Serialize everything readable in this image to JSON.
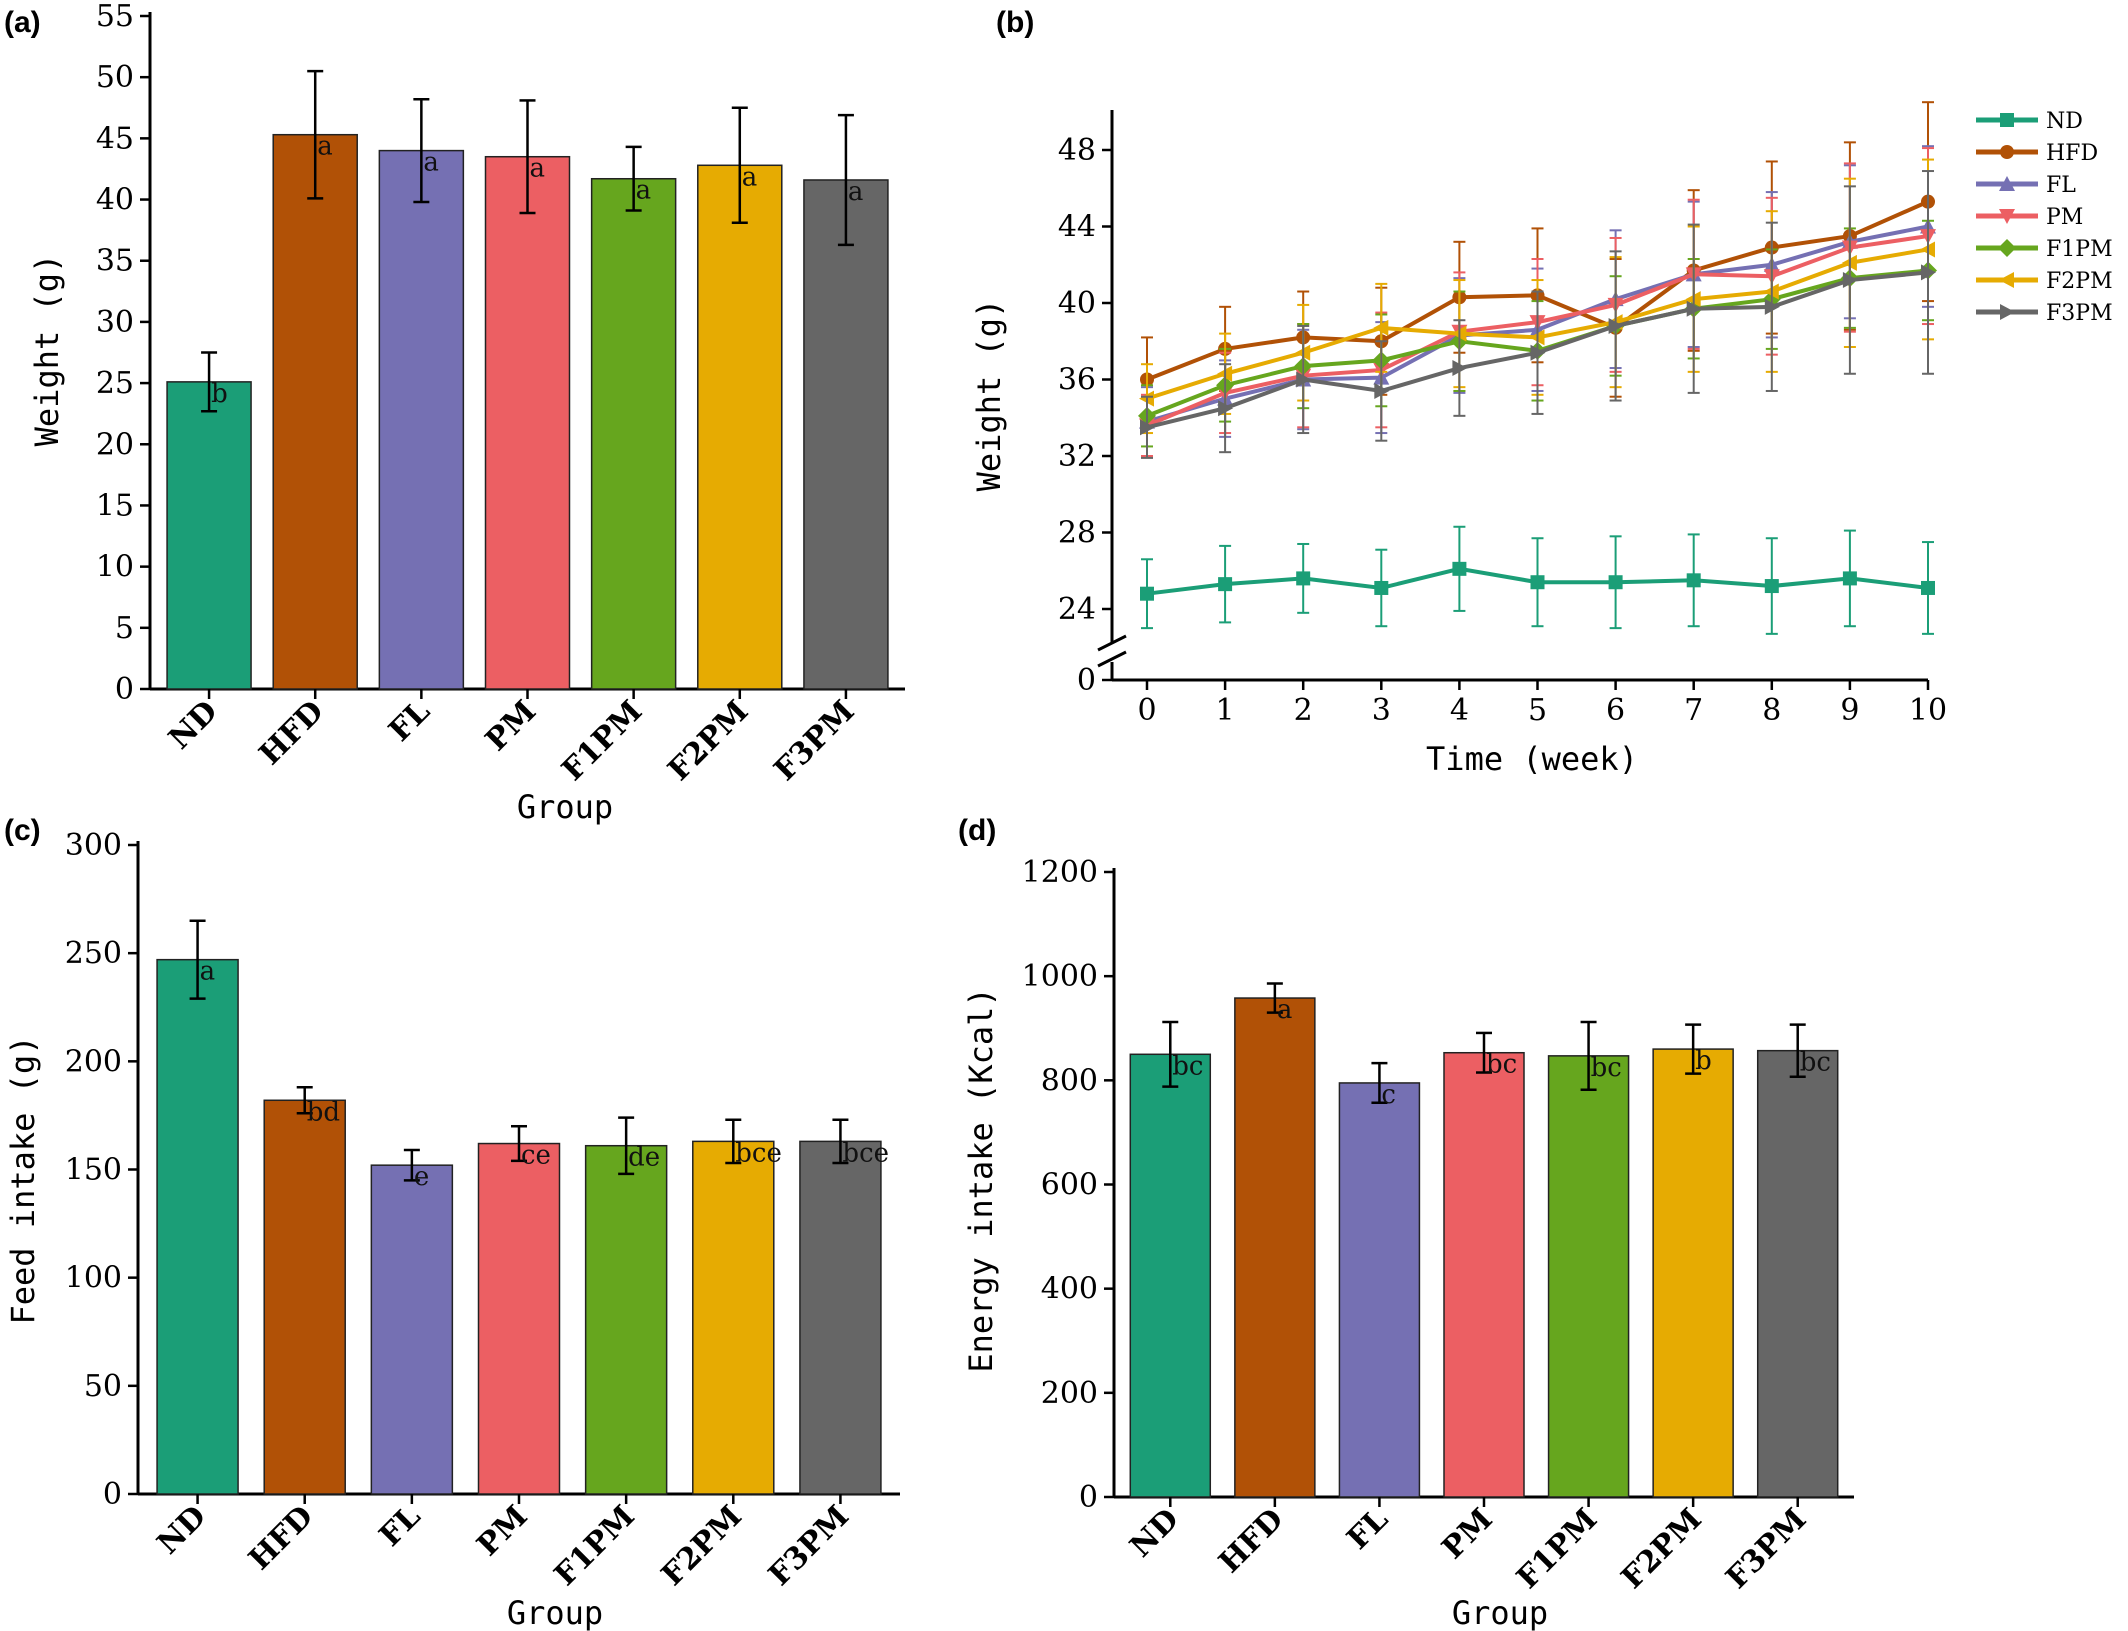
{
  "chart_data": [
    {
      "panel": "(a)",
      "type": "bar",
      "categories": [
        "ND",
        "HFD",
        "FL",
        "PM",
        "F1PM",
        "F2PM",
        "F3PM"
      ],
      "values": [
        25.1,
        45.3,
        44.0,
        43.5,
        41.7,
        42.8,
        41.6
      ],
      "errors": [
        2.4,
        5.2,
        4.2,
        4.6,
        2.6,
        4.7,
        5.3
      ],
      "labels": [
        "b",
        "a",
        "a",
        "a",
        "a",
        "a",
        "a"
      ],
      "xlabel": "Group",
      "ylabel": "Weight (g)",
      "ylim": [
        0,
        55
      ],
      "yticks": [
        0,
        5,
        10,
        15,
        20,
        25,
        30,
        35,
        40,
        45,
        50,
        55
      ]
    },
    {
      "panel": "(b)",
      "type": "line",
      "x": [
        0,
        1,
        2,
        3,
        4,
        5,
        6,
        7,
        8,
        9,
        10
      ],
      "xlabel": "Time (week)",
      "ylabel": "Weight (g)",
      "axis_break": true,
      "ylim": [
        22,
        50
      ],
      "yticks": [
        24,
        28,
        32,
        36,
        40,
        44,
        48
      ],
      "ytick_zero": "0",
      "legend_position": "top-right",
      "series": [
        {
          "name": "ND",
          "marker": "square",
          "values": [
            24.8,
            25.3,
            25.6,
            25.1,
            26.1,
            25.4,
            25.4,
            25.5,
            25.2,
            25.6,
            25.1
          ],
          "errors": [
            1.8,
            2.0,
            1.8,
            2.0,
            2.2,
            2.3,
            2.4,
            2.4,
            2.5,
            2.5,
            2.4
          ]
        },
        {
          "name": "HFD",
          "marker": "circle",
          "values": [
            36.0,
            37.6,
            38.2,
            38.0,
            40.3,
            40.4,
            38.7,
            41.7,
            42.9,
            43.5,
            45.3
          ],
          "errors": [
            2.2,
            2.2,
            2.4,
            2.8,
            2.9,
            3.5,
            3.6,
            4.2,
            4.5,
            4.9,
            5.2
          ]
        },
        {
          "name": "FL",
          "marker": "triangle-up",
          "values": [
            33.8,
            35.0,
            36.0,
            36.1,
            38.3,
            38.6,
            40.2,
            41.5,
            42.0,
            43.2,
            44.0
          ],
          "errors": [
            1.8,
            2.0,
            2.6,
            2.9,
            3.0,
            3.2,
            3.6,
            3.8,
            3.8,
            4.0,
            4.2
          ]
        },
        {
          "name": "PM",
          "marker": "triangle-down",
          "values": [
            33.6,
            35.3,
            36.2,
            36.5,
            38.5,
            39.0,
            39.9,
            41.5,
            41.4,
            42.9,
            43.5
          ],
          "errors": [
            1.6,
            2.1,
            2.7,
            3.0,
            3.1,
            3.3,
            3.5,
            3.9,
            4.1,
            4.4,
            4.6
          ]
        },
        {
          "name": "F1PM",
          "marker": "diamond",
          "values": [
            34.1,
            35.7,
            36.7,
            37.0,
            38.0,
            37.5,
            38.8,
            39.7,
            40.2,
            41.3,
            41.7
          ],
          "errors": [
            1.6,
            1.9,
            2.2,
            2.4,
            2.6,
            2.6,
            2.6,
            2.6,
            2.6,
            2.6,
            2.6
          ]
        },
        {
          "name": "F2PM",
          "marker": "triangle-left",
          "values": [
            35.0,
            36.3,
            37.4,
            38.7,
            38.4,
            38.2,
            39.0,
            40.2,
            40.6,
            42.1,
            42.8
          ],
          "errors": [
            1.8,
            2.1,
            2.5,
            2.3,
            2.8,
            3.0,
            3.4,
            3.8,
            4.2,
            4.4,
            4.7
          ]
        },
        {
          "name": "F3PM",
          "marker": "triangle-right",
          "values": [
            33.5,
            34.5,
            36.0,
            35.4,
            36.6,
            37.4,
            38.8,
            39.7,
            39.8,
            41.2,
            41.6
          ],
          "errors": [
            1.6,
            2.3,
            2.8,
            2.6,
            2.5,
            3.2,
            3.9,
            4.4,
            4.4,
            4.9,
            5.3
          ]
        }
      ]
    },
    {
      "panel": "(c)",
      "type": "bar",
      "categories": [
        "ND",
        "HFD",
        "FL",
        "PM",
        "F1PM",
        "F2PM",
        "F3PM"
      ],
      "values": [
        247,
        182,
        152,
        162,
        161,
        163,
        163
      ],
      "errors": [
        18,
        6,
        7,
        8,
        13,
        10,
        10
      ],
      "labels": [
        "a",
        "bd",
        "e",
        "ce",
        "de",
        "bce",
        "bce"
      ],
      "xlabel": "Group",
      "ylabel": "Feed intake (g)",
      "ylim": [
        0,
        300
      ],
      "yticks": [
        0,
        50,
        100,
        150,
        200,
        250,
        300
      ]
    },
    {
      "panel": "(d)",
      "type": "bar",
      "categories": [
        "ND",
        "HFD",
        "FL",
        "PM",
        "F1PM",
        "F2PM",
        "F3PM"
      ],
      "values": [
        850,
        958,
        795,
        853,
        847,
        860,
        857
      ],
      "errors": [
        62,
        28,
        38,
        38,
        65,
        47,
        50
      ],
      "labels": [
        "bc",
        "a",
        "c",
        "bc",
        "bc",
        "b",
        "bc"
      ],
      "xlabel": "Group",
      "ylabel": "Energy intake (Kcal)",
      "ylim": [
        0,
        1200
      ],
      "yticks": [
        0,
        200,
        400,
        600,
        800,
        1000,
        1200
      ]
    }
  ],
  "colors": {
    "ND": "#1b9e77",
    "HFD": "#b15106",
    "FL": "#7570b3",
    "PM": "#ec5f63",
    "F1PM": "#66a61e",
    "F2PM": "#e6ab02",
    "F3PM": "#666666"
  }
}
